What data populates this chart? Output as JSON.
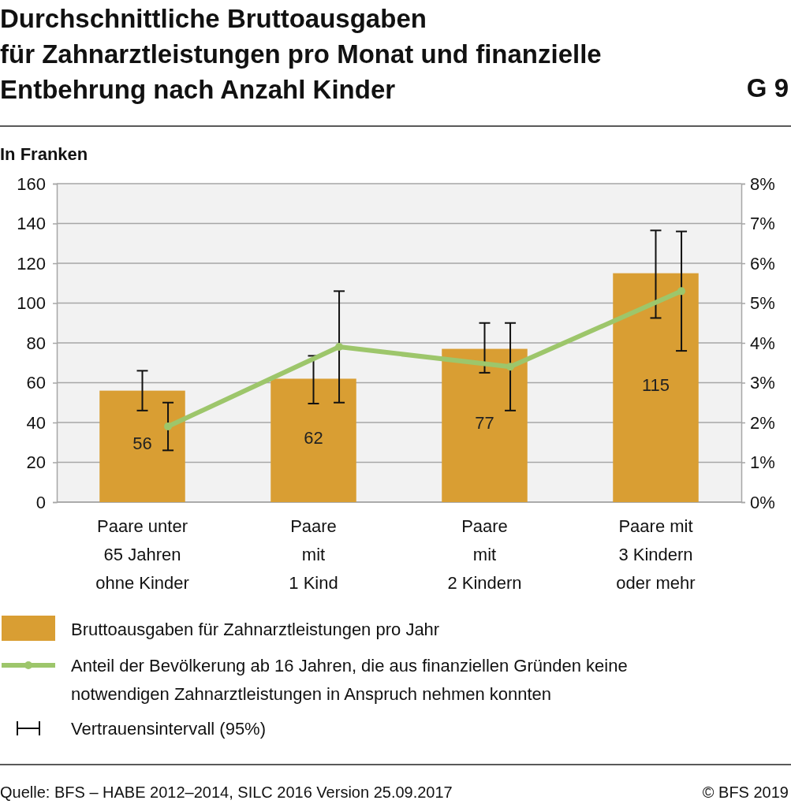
{
  "chart_data": {
    "type": "bar",
    "title": "Durchschnittliche Bruttoausgaben\nfür Zahnarztleistungen pro Monat und finanzielle\nEntbehrung nach Anzahl Kinder",
    "subtitle": "G 9",
    "ylabel": "In Franken",
    "categories": [
      "Paare unter\n65 Jahren\nohne Kinder",
      "Paare\nmit\n1 Kind",
      "Paare\nmit\n2 Kindern",
      "Paare mit\n3 Kindern\noder mehr"
    ],
    "series": [
      {
        "name": "Bruttoausgaben für Zahnarztleistungen pro Jahr",
        "color": "#d99e33",
        "values": [
          56,
          62,
          77,
          115
        ],
        "value_labels": [
          "56",
          "62",
          "77",
          "115"
        ],
        "errors": [
          [
            46,
            66
          ],
          [
            49.5,
            73.5
          ],
          [
            65,
            90
          ],
          [
            92.5,
            136.5
          ]
        ]
      },
      {
        "name": "Anteil der Bevölkerung ab 16 Jahren, die aus finanziellen Gründen keine notwendigen Zahnarztleistungen in Anspruch nehmen konnten",
        "type": "line",
        "axis": "y2",
        "color": "#9dc66b",
        "marker": "circle",
        "values": [
          1.9,
          3.9,
          3.4,
          5.3
        ],
        "errors": [
          [
            1.3,
            2.5
          ],
          [
            2.5,
            5.3
          ],
          [
            2.3,
            4.5
          ],
          [
            3.8,
            6.8
          ]
        ]
      }
    ],
    "ylim": [
      0,
      160
    ],
    "yticks": [
      0,
      20,
      40,
      60,
      80,
      100,
      120,
      140,
      160
    ],
    "y2lim": [
      0,
      8
    ],
    "y2ticks": [
      {
        "value": 0,
        "label": "0%"
      },
      {
        "value": 1,
        "label": "1%"
      },
      {
        "value": 2,
        "label": "2%"
      },
      {
        "value": 3,
        "label": "3%"
      },
      {
        "value": 4,
        "label": "4%"
      },
      {
        "value": 5,
        "label": "5%"
      },
      {
        "value": 6,
        "label": "6%"
      },
      {
        "value": 7,
        "label": "7%"
      },
      {
        "value": 8,
        "label": "8%"
      }
    ],
    "grid": "y",
    "legend": "bottom",
    "annotations": [
      "Vertrauensintervall (95%)",
      "Quelle: BFS – HABE 2012–2014, SILC 2016 Version 25.09.2017",
      "© BFS 2019"
    ]
  }
}
